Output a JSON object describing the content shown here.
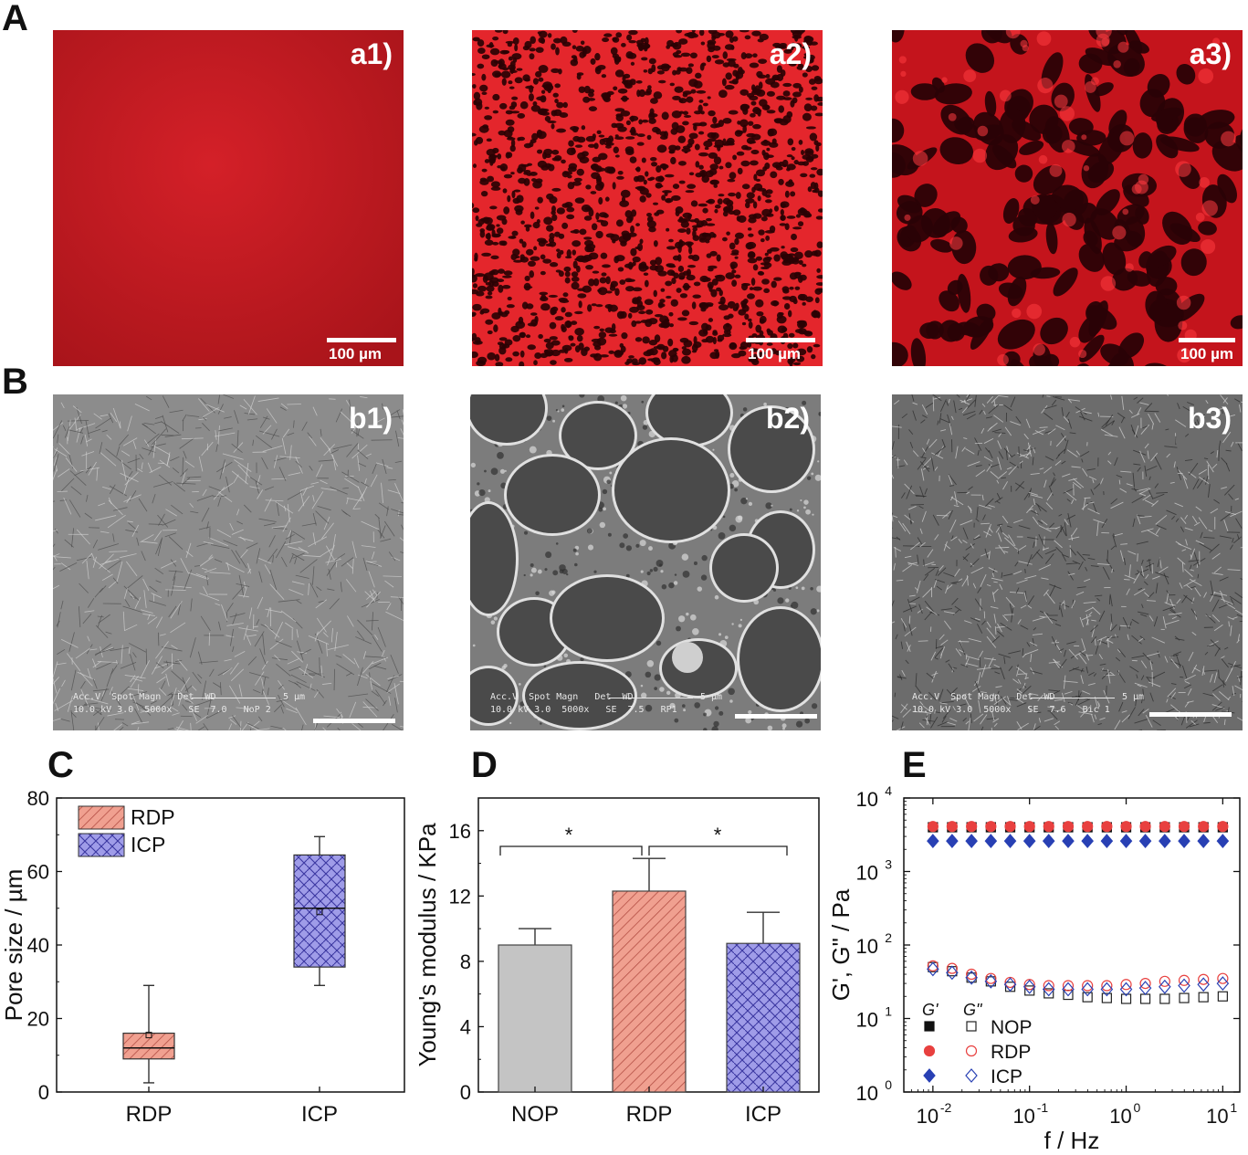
{
  "panel_labels": {
    "A": "A",
    "B": "B",
    "C": "C",
    "D": "D",
    "E": "E"
  },
  "fluorescence": [
    {
      "label": "a1)",
      "scale": "100 µm"
    },
    {
      "label": "a2)",
      "scale": "100 µm"
    },
    {
      "label": "a3)",
      "scale": "100 µm"
    }
  ],
  "sem": [
    {
      "label": "b1)",
      "info_header": "Acc.V  Spot Magn   Det  WD",
      "info_values": "10.0 kV 3.0  5000x   SE  7.0   NoP 2",
      "bar_text": "5 µm"
    },
    {
      "label": "b2)",
      "info_header": "Acc.V  Spot Magn   Det  WD",
      "info_values": "10.0 kV 3.0  5000x   SE  7.5   RP1",
      "bar_text": "5 µm"
    },
    {
      "label": "b3)",
      "info_header": "Acc.V  Spot Magn   Det  WD",
      "info_values": "10.0 kV 3.0  5000x   SE  7.6   Bic 1",
      "bar_text": "5 µm"
    }
  ],
  "colors": {
    "red": "#e8403f",
    "rdp_fill": "#f0a090",
    "icp_fill": "#9f9ce8",
    "nop_fill": "#c4c4c4",
    "blue": "#2840b4"
  },
  "chart_data": [
    {
      "type": "box",
      "ylabel": "Pore size / µm",
      "ylim": [
        0,
        80
      ],
      "yticks": [
        "0",
        "20",
        "40",
        "60",
        "80"
      ],
      "categories": [
        "RDP",
        "ICP"
      ],
      "legend": [
        "RDP",
        "ICP"
      ],
      "boxes": [
        {
          "name": "RDP",
          "min": 2.5,
          "q1": 9,
          "median": 12,
          "q3": 16,
          "max": 29,
          "mean": 15.5
        },
        {
          "name": "ICP",
          "min": 29,
          "q1": 34,
          "median": 50,
          "q3": 64.5,
          "max": 69.5,
          "mean": 49
        }
      ]
    },
    {
      "type": "bar",
      "ylabel": "Young's modulus / KPa",
      "ylim": [
        0,
        18
      ],
      "yticks": [
        "0",
        "4",
        "8",
        "12",
        "16"
      ],
      "categories": [
        "NOP",
        "RDP",
        "ICP"
      ],
      "values": [
        9.0,
        12.3,
        9.1
      ],
      "errors": [
        1.0,
        2.0,
        1.9
      ],
      "significance": [
        "*",
        "*"
      ]
    },
    {
      "type": "scatter",
      "xlabel": "f / Hz",
      "ylabel": "G', G\" / Pa",
      "xscale": "log",
      "yscale": "log",
      "xlim": [
        0.005,
        15
      ],
      "ylim": [
        1,
        10000
      ],
      "xticks": [
        "10",
        "10",
        "10",
        "10"
      ],
      "xtick_exps": [
        "-2",
        "-1",
        "0",
        "1"
      ],
      "yticks": [
        "10",
        "10",
        "10",
        "10",
        "10"
      ],
      "ytick_exps": [
        "0",
        "1",
        "2",
        "3",
        "4"
      ],
      "legend_header": [
        "G'",
        "G\""
      ],
      "legend": [
        "NOP",
        "RDP",
        "ICP"
      ],
      "x": [
        0.01,
        0.0158,
        0.0251,
        0.0398,
        0.0631,
        0.1,
        0.158,
        0.251,
        0.398,
        0.631,
        1.0,
        1.58,
        2.51,
        3.98,
        6.31,
        10.0
      ],
      "series": [
        {
          "name": "G' NOP",
          "values": [
            4000,
            4000,
            4000,
            4000,
            4000,
            4000,
            4000,
            4000,
            4000,
            4000,
            4000,
            4000,
            4000,
            4000,
            4000,
            4000
          ]
        },
        {
          "name": "G' RDP",
          "values": [
            4100,
            4100,
            4100,
            4100,
            4100,
            4100,
            4100,
            4100,
            4100,
            4100,
            4100,
            4100,
            4100,
            4100,
            4100,
            4100
          ]
        },
        {
          "name": "G' ICP",
          "values": [
            2600,
            2600,
            2600,
            2600,
            2600,
            2600,
            2600,
            2600,
            2600,
            2600,
            2600,
            2600,
            2600,
            2600,
            2600,
            2600
          ]
        },
        {
          "name": "G\" NOP",
          "values": [
            50,
            44,
            36,
            32,
            27,
            24,
            22,
            21,
            19.5,
            19,
            18.5,
            18.5,
            18.5,
            19,
            19.5,
            20
          ]
        },
        {
          "name": "G\" RDP",
          "values": [
            52,
            48,
            40,
            35,
            31,
            29,
            28,
            28,
            28,
            28,
            29,
            30,
            32,
            33,
            34,
            35
          ]
        },
        {
          "name": "G\" ICP",
          "values": [
            47,
            42,
            36,
            32,
            29,
            27,
            25,
            25,
            25,
            25,
            25,
            26,
            27,
            28,
            29,
            30
          ]
        }
      ]
    }
  ]
}
